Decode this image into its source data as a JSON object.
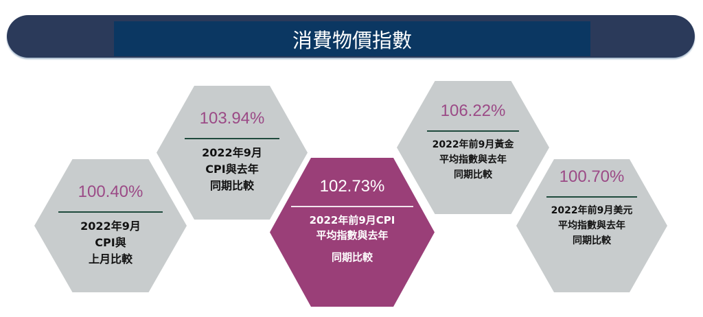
{
  "title": "消費物價指數",
  "colors": {
    "banner_outer": "#2b3a5a",
    "banner_inner": "#0b3762",
    "hex_grey": "#c8cccd",
    "hex_highlight": "#9a3f78",
    "percent_text": "#9b4a86"
  },
  "hexagons": [
    {
      "value": "100.40%",
      "lines": [
        "2022年9月",
        "CPI與",
        "上月比較"
      ]
    },
    {
      "value": "103.94%",
      "lines": [
        "2022年9月",
        "CPI與去年",
        "同期比較"
      ]
    },
    {
      "value": "102.73%",
      "lines": [
        "2022年前9月CPI",
        "平均指數與去年",
        "同期比較"
      ]
    },
    {
      "value": "106.22%",
      "lines": [
        "2022年前9月黃金",
        "平均指數與去年",
        "同期比較"
      ]
    },
    {
      "value": "100.70%",
      "lines": [
        "2022年前9月美元",
        "平均指數與去年",
        "同期比較"
      ]
    }
  ]
}
